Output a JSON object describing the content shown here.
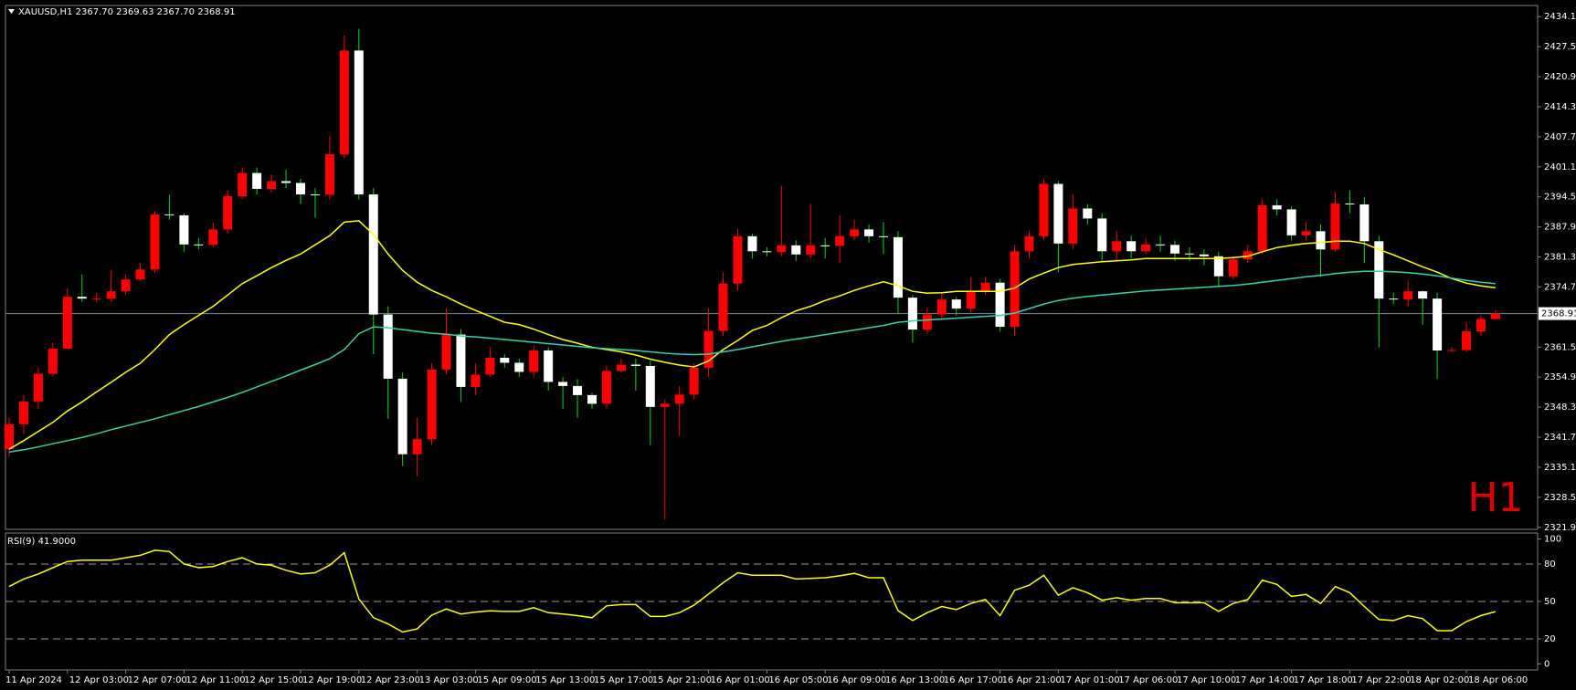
{
  "chart_data": [
    {
      "type": "candlestick",
      "title": "XAUUSD,H1  2367.70 2369.63 2367.70 2368.91",
      "watermark": "H1",
      "categories": [
        "11 Apr 2024",
        null,
        null,
        null,
        "12 Apr 03:00",
        null,
        null,
        null,
        "12 Apr 07:00",
        null,
        null,
        null,
        "12 Apr 11:00",
        null,
        null,
        null,
        "12 Apr 15:00",
        null,
        null,
        null,
        "12 Apr 19:00",
        null,
        null,
        null,
        "12 Apr 23:00",
        null,
        null,
        null,
        "13 Apr 03:00",
        null,
        null,
        null,
        "15 Apr 09:00",
        null,
        null,
        null,
        "15 Apr 13:00",
        null,
        null,
        null,
        "15 Apr 17:00",
        null,
        null,
        null,
        "15 Apr 21:00",
        null,
        null,
        null,
        "16 Apr 01:00",
        null,
        null,
        null,
        "16 Apr 05:00",
        null,
        null,
        null,
        "16 Apr 09:00",
        null,
        null,
        null,
        "16 Apr 13:00",
        null,
        null,
        null,
        "16 Apr 17:00",
        null,
        null,
        null,
        "16 Apr 21:00",
        null,
        null,
        null,
        "17 Apr 01:00",
        null,
        null,
        null,
        "17 Apr 06:00",
        null,
        null,
        null,
        "17 Apr 10:00",
        null,
        null,
        null,
        "17 Apr 14:00",
        null,
        null,
        null,
        "17 Apr 18:00",
        null,
        null,
        null,
        "17 Apr 22:00",
        null,
        null,
        null,
        "18 Apr 02:00",
        null,
        null,
        null,
        "18 Apr 06:00",
        null,
        null
      ],
      "open": [
        2339.1,
        2344.6,
        2349.6,
        2355.7,
        2361.2,
        2372.6,
        2372.2,
        2372.2,
        2373.8,
        2376.4,
        2378.6,
        2390.7,
        2390.5,
        2384.1,
        2384.0,
        2387.4,
        2394.7,
        2399.8,
        2396.3,
        2398.0,
        2397.6,
        2395.1,
        2395.0,
        2403.9,
        2426.7,
        2395.1,
        2368.7,
        2354.6,
        2338.0,
        2341.3,
        2356.6,
        2364.3,
        2352.8,
        2355.5,
        2359.2,
        2358.1,
        2356.1,
        2360.8,
        2353.9,
        2353.0,
        2351.0,
        2349.1,
        2356.3,
        2357.7,
        2357.4,
        2348.4,
        2349.1,
        2351.1,
        2357.0,
        2365.1,
        2375.5,
        2385.9,
        2382.6,
        2382.4,
        2383.9,
        2381.9,
        2383.9,
        2383.8,
        2385.9,
        2387.4,
        2385.9,
        2385.7,
        2372.4,
        2365.4,
        2368.7,
        2372.0,
        2370.0,
        2373.8,
        2375.7,
        2366.0,
        2382.6,
        2385.9,
        2397.4,
        2384.3,
        2392.0,
        2389.8,
        2382.6,
        2384.8,
        2382.6,
        2384.1,
        2384.0,
        2382.1,
        2381.9,
        2381.5,
        2377.1,
        2380.8,
        2382.6,
        2392.7,
        2391.8,
        2386.1,
        2387.0,
        2383.0,
        2393.1,
        2392.9,
        2384.8,
        2372.2,
        2372.0,
        2373.8,
        2372.2,
        2360.8,
        2360.9,
        2365.0,
        2367.7
      ],
      "high": [
        2346,
        2351,
        2357,
        2362.5,
        2374.5,
        2377.5,
        2373.5,
        2378.5,
        2377.5,
        2380,
        2391.5,
        2395,
        2391,
        2385.5,
        2389,
        2396,
        2401,
        2401,
        2399.5,
        2400.5,
        2398.5,
        2396.5,
        2408,
        2430,
        2431.5,
        2396.5,
        2370.5,
        2356,
        2346,
        2358,
        2370,
        2365.5,
        2358,
        2361.5,
        2360,
        2359,
        2362,
        2361.5,
        2355,
        2354.5,
        2351.5,
        2357.5,
        2359,
        2359,
        2358.5,
        2350,
        2353,
        2358,
        2370,
        2378,
        2387.5,
        2386.5,
        2383.5,
        2397,
        2385,
        2393,
        2385.5,
        2390.5,
        2389.5,
        2388.5,
        2389,
        2387,
        2373,
        2370,
        2373.5,
        2372.5,
        2377,
        2377,
        2376.5,
        2384,
        2387,
        2398.5,
        2398,
        2395,
        2393,
        2391,
        2387,
        2386,
        2385.5,
        2386,
        2385,
        2383.5,
        2383,
        2382.5,
        2381.5,
        2384,
        2394,
        2394,
        2392.5,
        2389,
        2388.5,
        2395.5,
        2396,
        2394.5,
        2386,
        2373.5,
        2376,
        2374,
        2373.5,
        2361.5,
        2367,
        2368.5,
        2369.63
      ],
      "low": [
        2337.5,
        2342.5,
        2348,
        2355,
        2361,
        2371.5,
        2371.5,
        2371.5,
        2373,
        2376,
        2378,
        2389.5,
        2382.5,
        2383,
        2383.5,
        2386.5,
        2394,
        2395,
        2395.5,
        2396.5,
        2393,
        2390,
        2394,
        2403,
        2394,
        2360,
        2345.8,
        2335.4,
        2333.2,
        2340,
        2355.5,
        2349.5,
        2351,
        2355,
        2357,
        2355,
        2355,
        2352,
        2348,
        2346,
        2348,
        2348,
        2356,
        2352,
        2340,
        2323.6,
        2342,
        2350,
        2355,
        2364,
        2374,
        2381,
        2381.5,
        2381.5,
        2380.5,
        2381,
        2381,
        2380,
        2385,
        2384.5,
        2382,
        2369,
        2362.5,
        2364.5,
        2367.5,
        2368.5,
        2369,
        2373,
        2365,
        2364,
        2381,
        2385,
        2378,
        2383,
        2388.5,
        2380.5,
        2380.5,
        2381,
        2382,
        2382.5,
        2380.5,
        2380.5,
        2379.5,
        2375,
        2376.5,
        2380,
        2382,
        2390.5,
        2385,
        2385,
        2377,
        2382.5,
        2391,
        2380,
        2361.5,
        2371,
        2370.5,
        2366.5,
        2354.5,
        2360.5,
        2360.5,
        2364,
        2367.7
      ],
      "close": [
        2344.6,
        2349.6,
        2355.7,
        2361.2,
        2372.6,
        2372.2,
        2372.2,
        2373.8,
        2376.4,
        2378.6,
        2390.7,
        2390.5,
        2384.1,
        2384.0,
        2387.4,
        2394.7,
        2399.8,
        2396.3,
        2398.0,
        2397.6,
        2395.1,
        2395.0,
        2403.9,
        2426.7,
        2395.1,
        2368.7,
        2354.6,
        2338.0,
        2341.3,
        2356.6,
        2364.3,
        2352.8,
        2355.5,
        2359.2,
        2358.1,
        2356.1,
        2360.8,
        2353.9,
        2353.0,
        2351.0,
        2349.1,
        2356.3,
        2357.7,
        2357.4,
        2348.4,
        2349.1,
        2351.1,
        2357.0,
        2365.1,
        2375.5,
        2385.9,
        2382.6,
        2382.4,
        2383.9,
        2381.9,
        2383.9,
        2383.8,
        2385.9,
        2387.4,
        2385.9,
        2385.7,
        2372.4,
        2365.4,
        2368.7,
        2372.0,
        2370.0,
        2373.8,
        2375.7,
        2366.0,
        2382.6,
        2385.9,
        2397.4,
        2384.3,
        2392.0,
        2389.8,
        2382.6,
        2384.8,
        2382.6,
        2384.1,
        2384.0,
        2382.1,
        2381.9,
        2381.5,
        2377.1,
        2380.8,
        2382.6,
        2392.7,
        2391.8,
        2386.1,
        2387.0,
        2383.0,
        2393.1,
        2392.9,
        2384.8,
        2372.2,
        2372.0,
        2373.8,
        2372.2,
        2360.8,
        2360.9,
        2365.0,
        2367.7,
        2368.91
      ],
      "up_color": "#ff0000",
      "down_color": "#ffffff",
      "wick_color": "#00e000",
      "overlays": [
        {
          "color": "#ffff00",
          "values": [
            2339.1,
            2341,
            2343,
            2345,
            2347.5,
            2349.5,
            2351.7,
            2353.8,
            2356,
            2358,
            2361,
            2364.3,
            2366.5,
            2368.5,
            2370.5,
            2373,
            2375.5,
            2377.2,
            2379,
            2380.6,
            2382,
            2384,
            2386,
            2389,
            2389.3,
            2386.3,
            2382,
            2378.4,
            2375.8,
            2374,
            2372.6,
            2371,
            2369.6,
            2368.3,
            2367,
            2366.5,
            2365.5,
            2364.3,
            2363.2,
            2362.4,
            2361.5,
            2361,
            2360.5,
            2359.8,
            2358.9,
            2358.2,
            2357.6,
            2357.2,
            2358.5,
            2361,
            2363,
            2365.2,
            2366.3,
            2368,
            2369.5,
            2370.5,
            2371.8,
            2372.8,
            2374,
            2375,
            2375.9,
            2375,
            2373.8,
            2373.4,
            2373.5,
            2373.8,
            2373.8,
            2373.8,
            2373.8,
            2374.5,
            2376.5,
            2377.8,
            2379,
            2379.7,
            2380,
            2380.3,
            2380.5,
            2380.7,
            2381,
            2381,
            2381,
            2381,
            2381,
            2381,
            2381.2,
            2381.5,
            2382.5,
            2383.4,
            2383.9,
            2384.3,
            2384.5,
            2384.8,
            2384.8,
            2384.3,
            2383,
            2381.8,
            2380.5,
            2379.2,
            2378,
            2376.6,
            2375.6,
            2375,
            2374.6
          ]
        },
        {
          "color": "#2ed3b0",
          "values": [
            2338.5,
            2339,
            2339.6,
            2340.3,
            2341,
            2341.7,
            2342.5,
            2343.4,
            2344.2,
            2345,
            2345.8,
            2346.7,
            2347.6,
            2348.5,
            2349.5,
            2350.5,
            2351.6,
            2352.8,
            2354,
            2355.2,
            2356.5,
            2357.7,
            2359,
            2361,
            2364.5,
            2366,
            2365.8,
            2365.4,
            2365,
            2364.6,
            2364.4,
            2364,
            2363.8,
            2363.5,
            2363.2,
            2362.9,
            2362.6,
            2362.3,
            2362,
            2361.7,
            2361.4,
            2361.2,
            2361,
            2360.8,
            2360.5,
            2360.2,
            2360,
            2359.9,
            2360,
            2360.5,
            2361,
            2361.6,
            2362.2,
            2362.8,
            2363.3,
            2363.8,
            2364.3,
            2364.8,
            2365.3,
            2365.8,
            2366.3,
            2367,
            2367.3,
            2367.5,
            2367.7,
            2367.9,
            2368.1,
            2368.3,
            2368.5,
            2369,
            2370,
            2371,
            2371.8,
            2372.3,
            2372.7,
            2373,
            2373.3,
            2373.6,
            2373.9,
            2374.1,
            2374.3,
            2374.5,
            2374.7,
            2374.9,
            2375.1,
            2375.4,
            2375.8,
            2376.2,
            2376.6,
            2377,
            2377.3,
            2377.7,
            2378,
            2378.2,
            2378.2,
            2378.1,
            2377.9,
            2377.6,
            2377.2,
            2376.7,
            2376.2,
            2375.8,
            2375.5
          ]
        }
      ],
      "last_price": 2368.91,
      "ylim": [
        2321.5,
        2436.6
      ],
      "yticks": [
        2434.15,
        2427.55,
        2420.95,
        2414.35,
        2407.75,
        2401.15,
        2394.55,
        2387.95,
        2381.35,
        2374.75,
        2361.55,
        2354.95,
        2348.35,
        2341.75,
        2335.15,
        2328.55,
        2321.95
      ]
    },
    {
      "type": "line",
      "label": "RSI(9) 41.9000",
      "color": "#ffff00",
      "values": [
        62,
        68,
        72,
        77,
        82,
        83,
        83,
        83,
        85,
        87,
        91,
        90,
        80,
        77,
        78,
        82,
        85,
        80,
        79,
        75,
        72,
        73,
        79,
        89,
        52,
        37,
        32,
        25.5,
        28,
        39,
        44,
        40,
        41.5,
        42.5,
        42,
        42,
        45,
        41,
        40,
        38.7,
        37,
        46.5,
        47.5,
        47.5,
        38,
        38,
        41,
        47,
        56,
        65,
        73,
        71,
        71,
        71,
        68,
        68.5,
        69,
        70.5,
        72.5,
        69,
        69,
        42.7,
        34.7,
        41,
        46,
        43.5,
        48.4,
        51.6,
        38.7,
        59,
        63,
        71,
        55,
        61,
        57,
        51,
        53,
        51,
        52.4,
        52.4,
        49,
        49,
        49,
        42,
        48.4,
        51.6,
        67,
        63.7,
        54,
        55.6,
        48.4,
        62,
        57,
        46,
        35.5,
        34.7,
        38.7,
        36.3,
        26.6,
        26.6,
        33.9,
        38.7,
        41.9
      ],
      "ylim": [
        -4.8,
        104.8
      ],
      "yticks": [
        100,
        80,
        50,
        20,
        0
      ],
      "levels": [
        80,
        50,
        20
      ]
    }
  ]
}
